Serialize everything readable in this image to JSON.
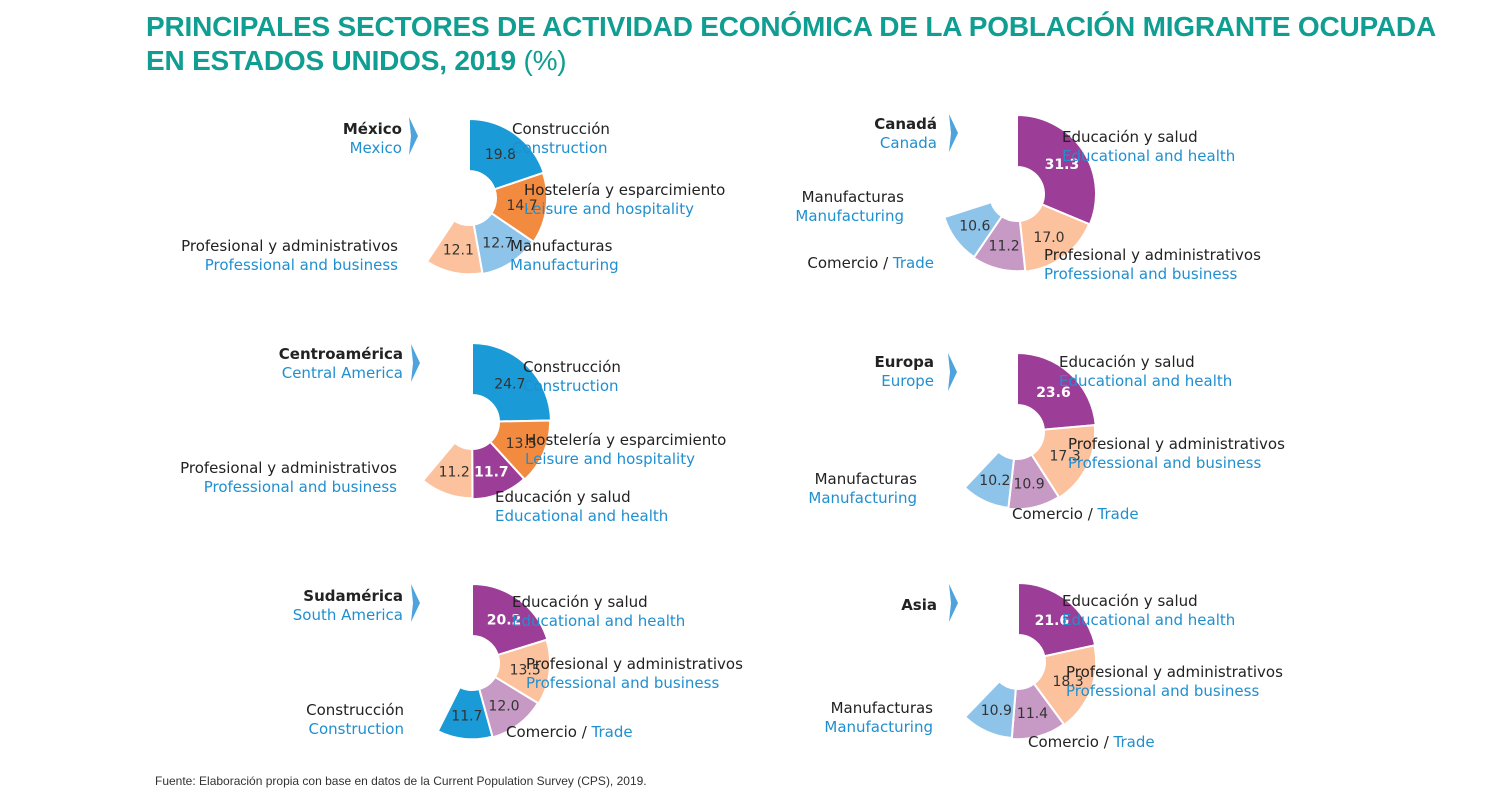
{
  "title": {
    "main": "PRINCIPALES SECTORES DE ACTIVIDAD ECONÓMICA DE LA POBLACIÓN MIGRANTE OCUPADA EN ESTADOS UNIDOS, 2019",
    "unit": "(%)"
  },
  "source": "Fuente: Elaboración propia con base en datos de la Current Population Survey (CPS), 2019.",
  "colors": {
    "construction": "#1a9ad7",
    "leisure": "#f28a3f",
    "manufacturing": "#8fc4ea",
    "professional": "#fbc29d",
    "education": "#9c3d98",
    "trade": "#c79ac6",
    "arrow": "#4fa3dc",
    "label_en": "#1f8fd0"
  },
  "chart_data": [
    {
      "type": "pie",
      "region_es": "México",
      "region_en": "Mexico",
      "slices": [
        {
          "es": "Construcción",
          "en": "Construction",
          "value": 19.8,
          "label": "19.8",
          "color": "construction"
        },
        {
          "es": "Hostelería y esparcimiento",
          "en": "Leisure and hospitality",
          "value": 14.7,
          "label": "14.7",
          "color": "leisure"
        },
        {
          "es": "Manufacturas",
          "en": "Manufacturing",
          "value": 12.7,
          "label": "12.7",
          "color": "manufacturing"
        },
        {
          "es": "Profesional y administrativos",
          "en": "Professional and business",
          "value": 12.1,
          "label": "12.1",
          "color": "professional"
        }
      ]
    },
    {
      "type": "pie",
      "region_es": "Canadá",
      "region_en": "Canada",
      "slices": [
        {
          "es": "Educación y salud",
          "en": "Educational and health",
          "value": 31.3,
          "label": "31.3",
          "color": "education"
        },
        {
          "es": "Profesional y administrativos",
          "en": "Professional and business",
          "value": 17.0,
          "label": "17.0",
          "color": "professional"
        },
        {
          "es": "Comercio",
          "en": "Trade",
          "value": 11.2,
          "label": "11.2",
          "color": "trade"
        },
        {
          "es": "Manufacturas",
          "en": "Manufacturing",
          "value": 10.6,
          "label": "10.6",
          "color": "manufacturing"
        }
      ]
    },
    {
      "type": "pie",
      "region_es": "Centroamérica",
      "region_en": "Central America",
      "slices": [
        {
          "es": "Construcción",
          "en": "Construction",
          "value": 24.7,
          "label": "24.7",
          "color": "construction"
        },
        {
          "es": "Hostelería y esparcimiento",
          "en": "Leisure and hospitality",
          "value": 13.5,
          "label": "13.5",
          "color": "leisure"
        },
        {
          "es": "Educación y salud",
          "en": "Educational and health",
          "value": 11.7,
          "label": "11.7",
          "color": "education"
        },
        {
          "es": "Profesional y administrativos",
          "en": "Professional and business",
          "value": 11.2,
          "label": "11.2",
          "color": "professional"
        }
      ]
    },
    {
      "type": "pie",
      "region_es": "Europa",
      "region_en": "Europe",
      "slices": [
        {
          "es": "Educación y salud",
          "en": "Educational and health",
          "value": 23.6,
          "label": "23.6",
          "color": "education"
        },
        {
          "es": "Profesional y administrativos",
          "en": "Professional and business",
          "value": 17.3,
          "label": "17.3",
          "color": "professional"
        },
        {
          "es": "Comercio",
          "en": "Trade",
          "value": 10.9,
          "label": "10.9",
          "color": "trade"
        },
        {
          "es": "Manufacturas",
          "en": "Manufacturing",
          "value": 10.2,
          "label": "10.2",
          "color": "manufacturing"
        }
      ]
    },
    {
      "type": "pie",
      "region_es": "Sudamérica",
      "region_en": "South America",
      "slices": [
        {
          "es": "Educación y salud",
          "en": "Educational and health",
          "value": 20.2,
          "label": "20.2",
          "color": "education"
        },
        {
          "es": "Profesional y administrativos",
          "en": "Professional and business",
          "value": 13.5,
          "label": "13.5",
          "color": "professional"
        },
        {
          "es": "Comercio",
          "en": "Trade",
          "value": 12.0,
          "label": "12.0",
          "color": "trade"
        },
        {
          "es": "Construcción",
          "en": "Construction",
          "value": 11.7,
          "label": "11.7",
          "color": "construction"
        }
      ]
    },
    {
      "type": "pie",
      "region_es": "Asia",
      "region_en": "",
      "slices": [
        {
          "es": "Educación y salud",
          "en": "Educational and health",
          "value": 21.6,
          "label": "21.6",
          "color": "education"
        },
        {
          "es": "Profesional y administrativos",
          "en": "Professional and business",
          "value": 18.3,
          "label": "18.3",
          "color": "professional"
        },
        {
          "es": "Comercio",
          "en": "Trade",
          "value": 11.4,
          "label": "11.4",
          "color": "trade"
        },
        {
          "es": "Manufacturas",
          "en": "Manufacturing",
          "value": 10.9,
          "label": "10.9",
          "color": "manufacturing"
        }
      ]
    }
  ]
}
